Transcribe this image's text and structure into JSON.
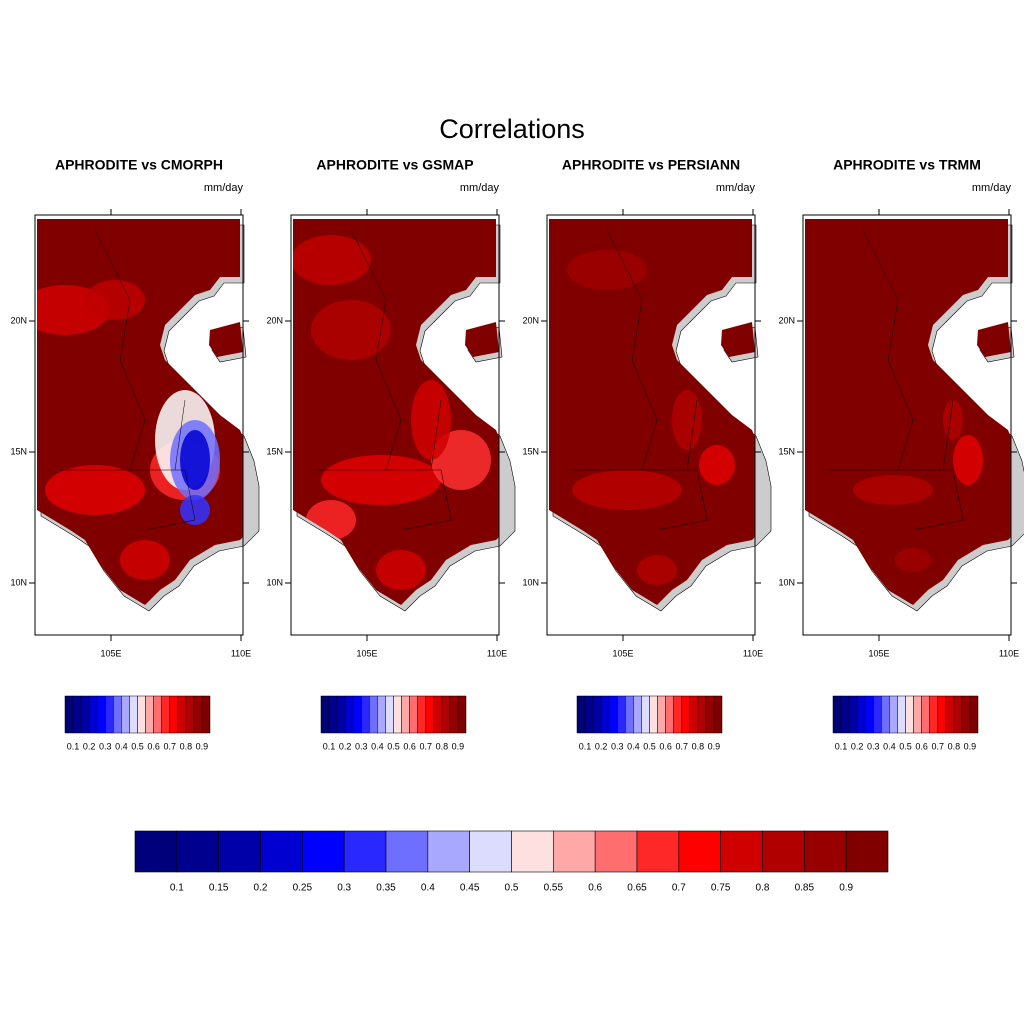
{
  "title": "Correlations",
  "panels": [
    {
      "title": "APHRODITE vs CMORPH",
      "units": "mm/day",
      "lat_labels": [
        "20N",
        "15N",
        "10N"
      ],
      "lon_labels": [
        "105E",
        "110E"
      ],
      "colorbar_labels": [
        "0.1",
        "0.2",
        "0.3",
        "0.4",
        "0.5",
        "0.6",
        "0.7",
        "0.8",
        "0.9"
      ]
    },
    {
      "title": "APHRODITE vs GSMAP",
      "units": "mm/day",
      "lat_labels": [
        "20N",
        "15N",
        "10N"
      ],
      "lon_labels": [
        "105E",
        "110E"
      ],
      "colorbar_labels": [
        "0.1",
        "0.2",
        "0.3",
        "0.4",
        "0.5",
        "0.6",
        "0.7",
        "0.8",
        "0.9"
      ]
    },
    {
      "title": "APHRODITE vs PERSIANN",
      "units": "mm/day",
      "lat_labels": [
        "20N",
        "15N",
        "10N"
      ],
      "lon_labels": [
        "105E",
        "110E"
      ],
      "colorbar_labels": [
        "0.1",
        "0.2",
        "0.3",
        "0.4",
        "0.5",
        "0.6",
        "0.7",
        "0.8",
        "0.9"
      ]
    },
    {
      "title": "APHRODITE vs TRMM",
      "units": "mm/day",
      "lat_labels": [
        "20N",
        "15N",
        "10N"
      ],
      "lon_labels": [
        "105E",
        "110E"
      ],
      "colorbar_labels": [
        "0.1",
        "0.2",
        "0.3",
        "0.4",
        "0.5",
        "0.6",
        "0.7",
        "0.8",
        "0.9"
      ]
    }
  ],
  "colorbar": {
    "labels": [
      "0.1",
      "0.15",
      "0.2",
      "0.25",
      "0.3",
      "0.35",
      "0.4",
      "0.45",
      "0.5",
      "0.55",
      "0.6",
      "0.65",
      "0.7",
      "0.75",
      "0.8",
      "0.85",
      "0.9"
    ],
    "colors": [
      "#00007a",
      "#00008f",
      "#0000a8",
      "#0000d0",
      "#0000ff",
      "#2828ff",
      "#6e6eff",
      "#a8a8ff",
      "#dcdcff",
      "#ffe0e0",
      "#ffa8a8",
      "#ff6e6e",
      "#ff2828",
      "#ff0000",
      "#d00000",
      "#b00000",
      "#980000",
      "#800000"
    ]
  }
}
